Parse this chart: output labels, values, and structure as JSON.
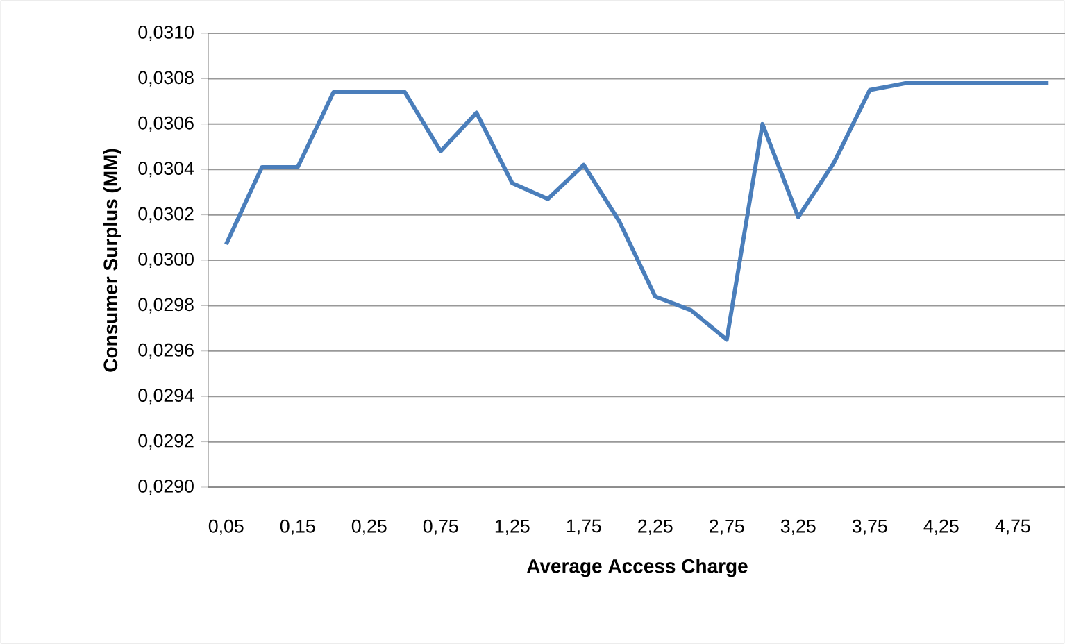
{
  "chart_data": {
    "type": "line",
    "xlabel": "Average Access Charge",
    "ylabel": "Consumer Surplus (MM)",
    "categories": [
      "0,05",
      null,
      "0,15",
      null,
      "0,25",
      null,
      "0,75",
      null,
      "1,25",
      null,
      "1,75",
      null,
      "2,25",
      null,
      "2,75",
      null,
      "3,25",
      null,
      "3,75",
      null,
      "4,25",
      null,
      "4,75",
      null
    ],
    "series": [
      {
        "color": "#4a7ebb",
        "values": [
          0.03007,
          0.03041,
          0.03041,
          0.03074,
          0.03074,
          0.03074,
          0.03048,
          0.03065,
          0.03034,
          0.03027,
          0.03042,
          0.03017,
          0.02984,
          0.02978,
          0.02965,
          0.0306,
          0.03019,
          0.03043,
          0.03075,
          0.03078,
          0.03078,
          0.03078,
          0.03078,
          0.03078
        ]
      }
    ],
    "ylim": [
      0.029,
      0.031
    ],
    "yticks": [
      {
        "value": 0.029,
        "label": "0,0290"
      },
      {
        "value": 0.0292,
        "label": "0,0292"
      },
      {
        "value": 0.0294,
        "label": "0,0294"
      },
      {
        "value": 0.0296,
        "label": "0,0296"
      },
      {
        "value": 0.0298,
        "label": "0,0298"
      },
      {
        "value": 0.03,
        "label": "0,0300"
      },
      {
        "value": 0.0302,
        "label": "0,0302"
      },
      {
        "value": 0.0304,
        "label": "0,0304"
      },
      {
        "value": 0.0306,
        "label": "0,0306"
      },
      {
        "value": 0.0308,
        "label": "0,0308"
      },
      {
        "value": 0.031,
        "label": "0,0310"
      }
    ],
    "grid": "y",
    "marker": "none",
    "line_style": "solid"
  }
}
